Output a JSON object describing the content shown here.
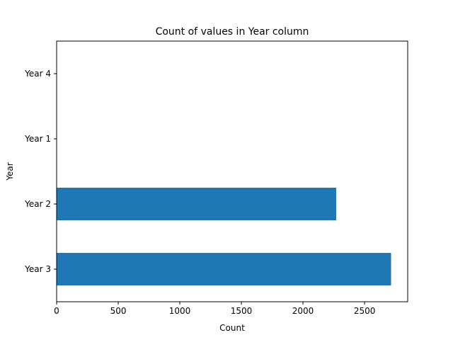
{
  "chart_data": {
    "type": "bar",
    "orientation": "horizontal",
    "title": "Count of values in Year column",
    "xlabel": "Count",
    "ylabel": "Year",
    "categories": [
      "Year 3",
      "Year 2",
      "Year 1",
      "Year 4"
    ],
    "values": [
      2715,
      2270,
      0,
      0
    ],
    "xlim": [
      0,
      2850
    ],
    "xticks": [
      0,
      500,
      1000,
      1500,
      2000,
      2500
    ],
    "grid": false,
    "legend": "none",
    "bar_color": "#1f77b4"
  }
}
